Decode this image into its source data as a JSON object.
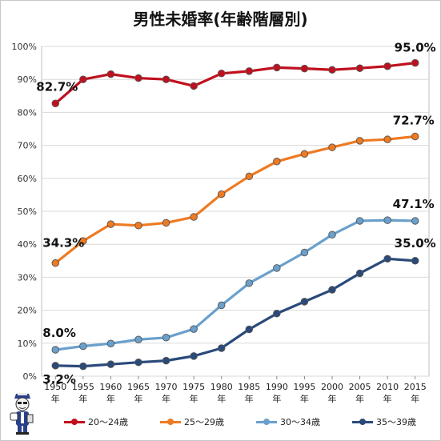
{
  "chart_data": {
    "type": "line",
    "title": "男性未婚率(年齢階層別)",
    "categories": [
      "1950",
      "1955",
      "1960",
      "1965",
      "1970",
      "1975",
      "1980",
      "1985",
      "1990",
      "1995",
      "2000",
      "2005",
      "2010",
      "2015"
    ],
    "category_suffix": "年",
    "ylim": [
      0,
      100
    ],
    "yticks": [
      "0%",
      "10%",
      "20%",
      "30%",
      "40%",
      "50%",
      "60%",
      "70%",
      "80%",
      "90%",
      "100%"
    ],
    "grid": true,
    "legend_position": "bottom",
    "series": [
      {
        "name": "20〜24歳",
        "color": "#c0101e",
        "values": [
          82.7,
          90.0,
          91.6,
          90.4,
          90.0,
          88.0,
          91.8,
          92.5,
          93.6,
          93.3,
          92.9,
          93.4,
          94.0,
          95.0
        ]
      },
      {
        "name": "25〜29歳",
        "color": "#ee7a22",
        "values": [
          34.3,
          41.0,
          46.1,
          45.7,
          46.5,
          48.3,
          55.2,
          60.6,
          65.1,
          67.4,
          69.4,
          71.4,
          71.8,
          72.7
        ]
      },
      {
        "name": "30〜34歳",
        "color": "#6aa0cc",
        "values": [
          8.0,
          9.1,
          9.9,
          11.1,
          11.7,
          14.3,
          21.5,
          28.2,
          32.8,
          37.5,
          42.9,
          47.1,
          47.3,
          47.1
        ]
      },
      {
        "name": "35〜39歳",
        "color": "#2a4a7a",
        "values": [
          3.2,
          3.0,
          3.6,
          4.2,
          4.7,
          6.1,
          8.5,
          14.2,
          19.0,
          22.6,
          26.2,
          31.2,
          35.6,
          35.0
        ]
      }
    ],
    "annotations": [
      "82.7%",
      "95.0%",
      "34.3%",
      "72.7%",
      "8.0%",
      "47.1%",
      "3.2%",
      "35.0%"
    ]
  }
}
